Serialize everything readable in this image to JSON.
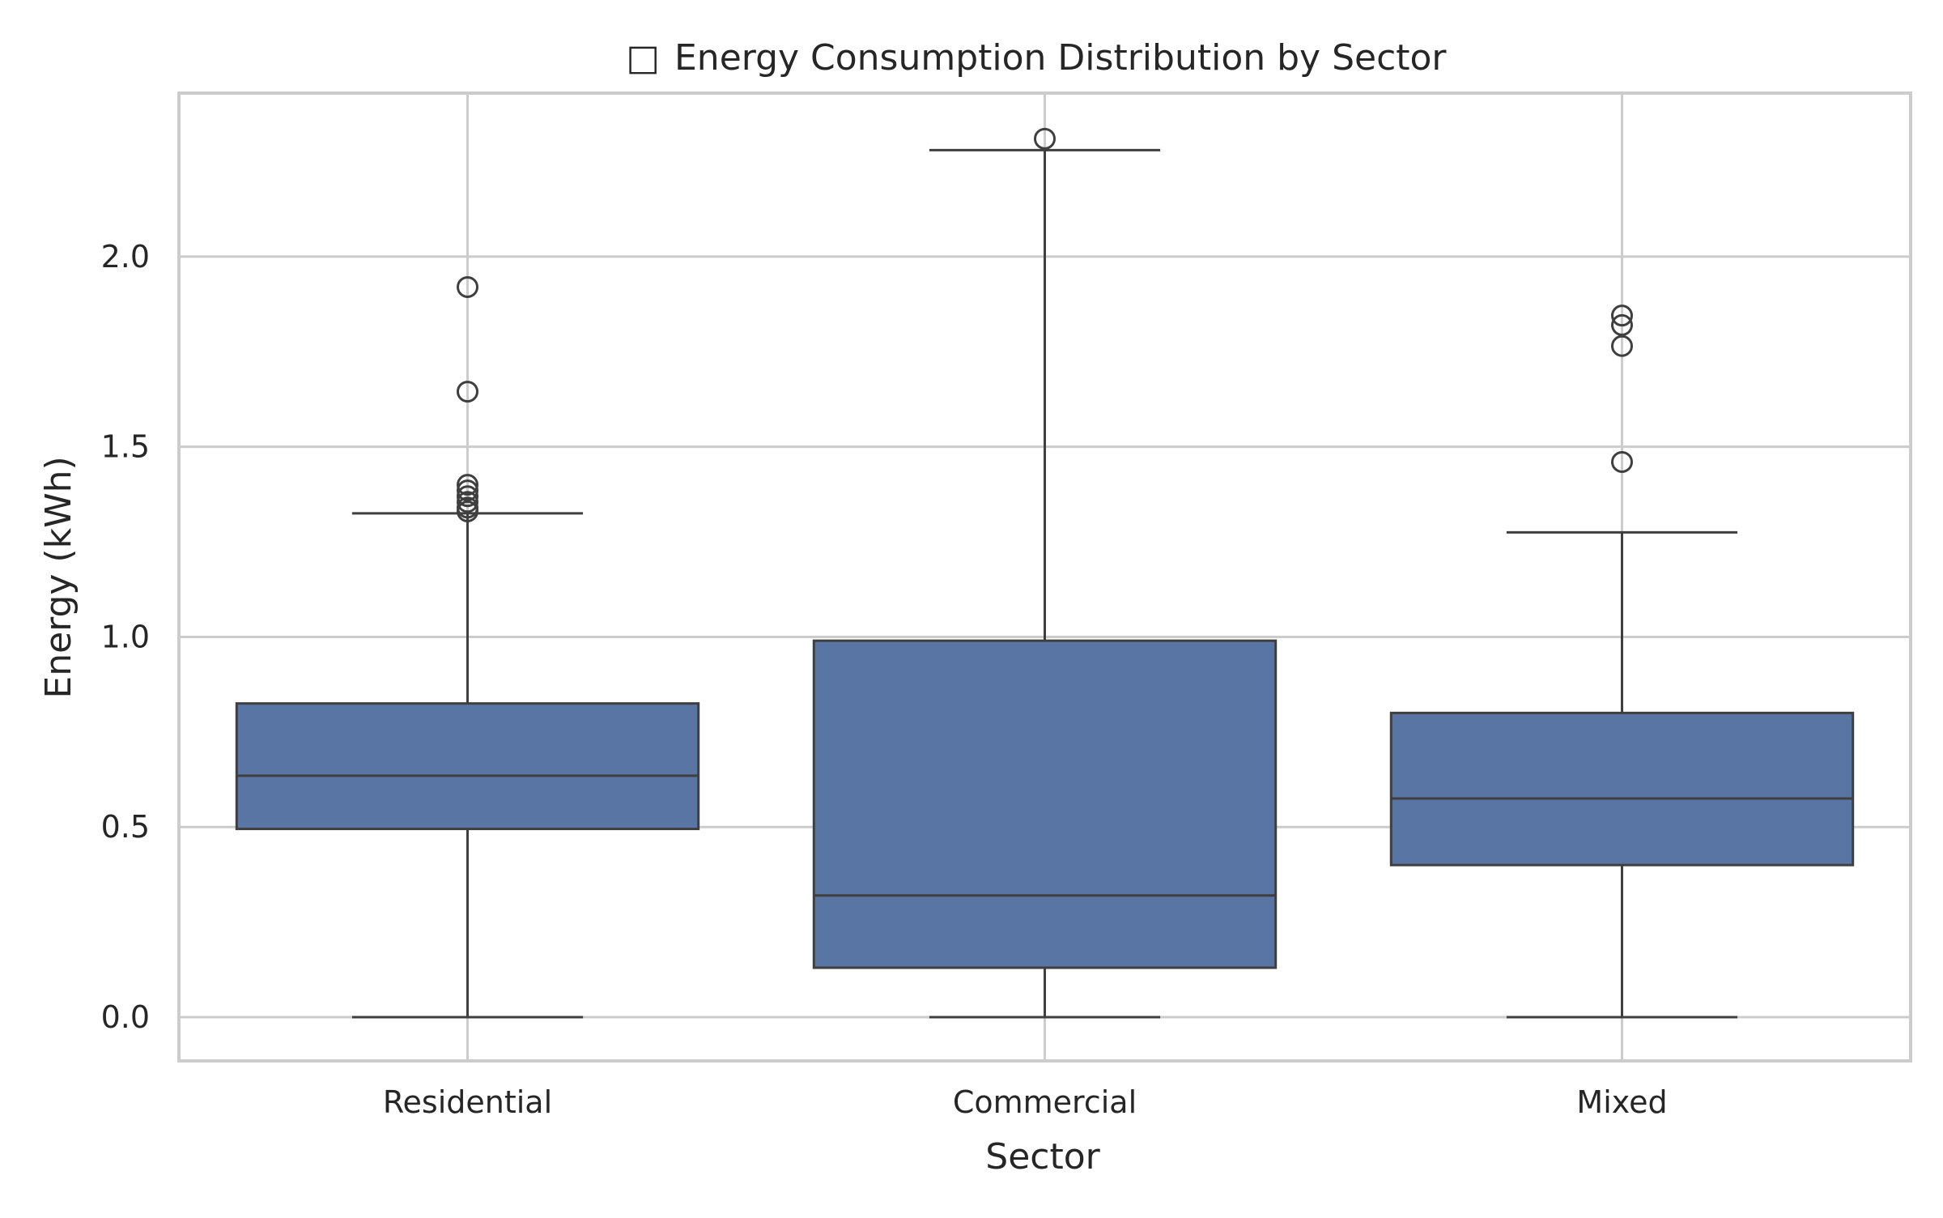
{
  "chart_data": {
    "type": "box",
    "title": "Energy Consumption Distribution by Sector",
    "title_icon_glyph": "□",
    "xlabel": "Sector",
    "ylabel": "Energy (kWh)",
    "ylim": [
      -0.115,
      2.43
    ],
    "yticks": [
      "0.0",
      "0.5",
      "1.0",
      "1.5",
      "2.0"
    ],
    "ytick_values": [
      0.0,
      0.5,
      1.0,
      1.5,
      2.0
    ],
    "grid": true,
    "box_color": "#5975a4",
    "line_color": "#3f3f3f",
    "grid_color": "#cccccc",
    "categories": [
      "Residential",
      "Commercial",
      "Mixed"
    ],
    "boxes": [
      {
        "category": "Residential",
        "whisker_low": 0.0,
        "q1": 0.495,
        "median": 0.635,
        "q3": 0.825,
        "whisker_high": 1.325,
        "outliers": [
          1.92,
          1.645,
          1.4,
          1.385,
          1.37,
          1.355,
          1.34,
          1.33
        ]
      },
      {
        "category": "Commercial",
        "whisker_low": 0.0,
        "q1": 0.13,
        "median": 0.32,
        "q3": 0.99,
        "whisker_high": 2.28,
        "outliers": [
          2.31
        ]
      },
      {
        "category": "Mixed",
        "whisker_low": 0.0,
        "q1": 0.4,
        "median": 0.575,
        "q3": 0.8,
        "whisker_high": 1.275,
        "outliers": [
          1.845,
          1.82,
          1.765,
          1.46
        ]
      }
    ]
  }
}
